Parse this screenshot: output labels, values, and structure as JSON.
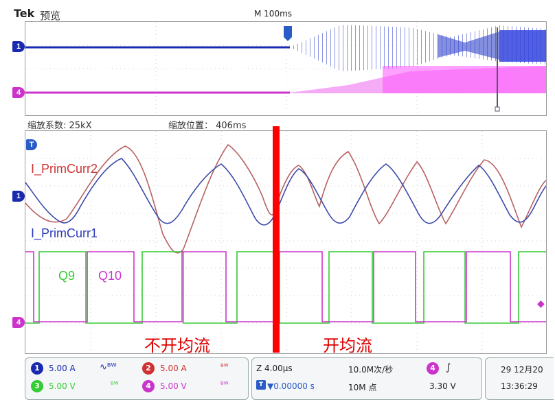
{
  "header": {
    "brand": "Tek",
    "mode_label": "预览",
    "main_timebase": "M 100ms"
  },
  "zoom": {
    "factor_label": "缩放系数: 25kX",
    "position_label": "缩放位置： 406ms"
  },
  "traces": {
    "prim_curr2": "I_PrimCurr2",
    "prim_curr1": "I_PrimCurr1",
    "q9": "Q9",
    "q10": "Q10"
  },
  "annotations": {
    "left": "不开均流",
    "right": "开均流"
  },
  "channels": {
    "ch1": {
      "num": "1",
      "value": "5.00 A"
    },
    "ch2": {
      "num": "2",
      "value": "5.00 A"
    },
    "ch3": {
      "num": "3",
      "value": "5.00 V"
    },
    "ch4": {
      "num": "4",
      "value": "5.00 V"
    },
    "ch1_marker": "1",
    "ch4_marker": "4",
    "trigger_marker": "T"
  },
  "timebase": {
    "zoom_scale": "Z 4.00μs",
    "trigger_pos": "▼0.00000 s",
    "sample_rate": "10.0M次/秒",
    "record_length": "10M 点",
    "trigger_source": "4",
    "trigger_slope": "∫",
    "trigger_level": "3.30 V"
  },
  "datetime": {
    "date": "29 12月20",
    "time": "13:36:29"
  },
  "colors": {
    "ch1": "#2233bb",
    "ch2": "#d03030",
    "ch3": "#33cc33",
    "ch4": "#cc33cc",
    "divider": "#ff0000",
    "prim2_trace": "#b86060",
    "prim1_trace": "#3a4aa8"
  }
}
